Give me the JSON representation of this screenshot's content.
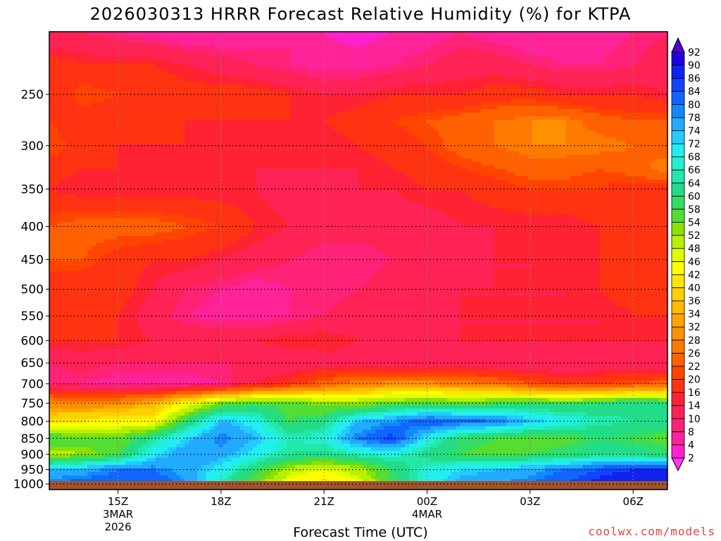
{
  "colors": {
    "ground": "#a0522d",
    "grid": "#000000",
    "credit": "#e8433a"
  },
  "chart_data": {
    "type": "heatmap",
    "title": "2026030313 HRRR Forecast Relative Humidity (%) for KTPA",
    "xlabel": "Forecast Time (UTC)",
    "ylabel": "",
    "x_ticks": [
      {
        "hour": 15,
        "lines": [
          "15Z",
          "3MAR",
          "2026"
        ]
      },
      {
        "hour": 18,
        "lines": [
          "18Z"
        ]
      },
      {
        "hour": 21,
        "lines": [
          "21Z"
        ]
      },
      {
        "hour": 24,
        "lines": [
          "00Z",
          "4MAR"
        ]
      },
      {
        "hour": 27,
        "lines": [
          "03Z"
        ]
      },
      {
        "hour": 30,
        "lines": [
          "06Z"
        ]
      }
    ],
    "xlim": [
      13,
      31
    ],
    "y_ticks": [
      250,
      300,
      350,
      400,
      450,
      500,
      550,
      600,
      650,
      700,
      750,
      800,
      850,
      900,
      950,
      1000
    ],
    "ylim": [
      1020,
      200
    ],
    "y_scale": "log-pressure",
    "grid": true,
    "colorbar_levels": [
      2,
      4,
      8,
      10,
      14,
      16,
      20,
      22,
      26,
      28,
      32,
      34,
      36,
      40,
      42,
      46,
      48,
      52,
      54,
      58,
      60,
      64,
      66,
      68,
      72,
      74,
      78,
      80,
      84,
      86,
      90,
      92
    ],
    "colorbar_colors": [
      "#ff33ff",
      "#ff22cc",
      "#ff2299",
      "#ff2277",
      "#ff2255",
      "#ff2233",
      "#ff3311",
      "#ff4400",
      "#ff6000",
      "#ff7a00",
      "#ff9000",
      "#ffa500",
      "#ffbb00",
      "#ffd000",
      "#ffe500",
      "#ffff00",
      "#e0ff00",
      "#b8f000",
      "#8ce000",
      "#55dd33",
      "#33dd66",
      "#22dd88",
      "#22e8aa",
      "#22f0cc",
      "#22eeee",
      "#22ccff",
      "#22aaff",
      "#1188ff",
      "#1166ff",
      "#1144ff",
      "#1122ee",
      "#2200dd",
      "#5500cc"
    ],
    "hours": [
      13,
      14,
      15,
      16,
      17,
      18,
      19,
      20,
      21,
      22,
      23,
      24,
      25,
      26,
      27,
      28,
      29,
      30,
      31
    ],
    "pressure_levels": [
      200,
      225,
      250,
      275,
      300,
      325,
      350,
      400,
      450,
      500,
      550,
      600,
      650,
      700,
      750,
      800,
      850,
      900,
      950,
      1000,
      1020
    ],
    "rh_grid": [
      [
        10,
        10,
        8,
        6,
        4,
        4,
        6,
        8,
        4,
        2,
        4,
        6,
        8,
        6,
        4,
        4,
        6,
        8,
        10
      ],
      [
        18,
        16,
        16,
        16,
        14,
        12,
        10,
        8,
        6,
        6,
        8,
        10,
        12,
        12,
        10,
        8,
        8,
        10,
        12
      ],
      [
        16,
        22,
        20,
        20,
        18,
        18,
        18,
        16,
        14,
        14,
        16,
        16,
        16,
        18,
        18,
        16,
        16,
        16,
        14
      ],
      [
        20,
        18,
        16,
        16,
        16,
        16,
        16,
        16,
        16,
        18,
        20,
        22,
        24,
        26,
        28,
        28,
        24,
        22,
        22
      ],
      [
        22,
        18,
        16,
        16,
        16,
        14,
        14,
        14,
        14,
        16,
        18,
        20,
        24,
        26,
        28,
        28,
        28,
        26,
        24
      ],
      [
        18,
        16,
        16,
        14,
        14,
        14,
        14,
        14,
        14,
        14,
        16,
        18,
        20,
        22,
        24,
        24,
        22,
        24,
        28
      ],
      [
        16,
        14,
        14,
        14,
        14,
        14,
        14,
        12,
        12,
        14,
        14,
        16,
        16,
        18,
        20,
        20,
        20,
        18,
        18
      ],
      [
        22,
        24,
        24,
        24,
        22,
        20,
        16,
        14,
        12,
        12,
        12,
        12,
        14,
        14,
        14,
        14,
        16,
        16,
        16
      ],
      [
        22,
        22,
        18,
        16,
        16,
        14,
        12,
        10,
        8,
        8,
        10,
        12,
        12,
        14,
        14,
        16,
        16,
        16,
        18
      ],
      [
        16,
        16,
        18,
        14,
        10,
        8,
        6,
        8,
        8,
        10,
        12,
        12,
        14,
        14,
        14,
        14,
        16,
        18,
        20
      ],
      [
        18,
        20,
        16,
        12,
        8,
        6,
        6,
        8,
        10,
        12,
        12,
        14,
        14,
        14,
        14,
        14,
        14,
        16,
        16
      ],
      [
        16,
        16,
        16,
        14,
        14,
        14,
        14,
        16,
        16,
        14,
        12,
        12,
        14,
        14,
        14,
        14,
        14,
        14,
        14
      ],
      [
        10,
        12,
        10,
        10,
        10,
        10,
        10,
        10,
        12,
        12,
        10,
        10,
        10,
        10,
        10,
        10,
        10,
        10,
        10
      ],
      [
        8,
        8,
        6,
        6,
        6,
        8,
        14,
        18,
        24,
        28,
        30,
        30,
        28,
        26,
        22,
        18,
        20,
        22,
        24
      ],
      [
        30,
        28,
        30,
        34,
        44,
        54,
        58,
        56,
        52,
        52,
        56,
        58,
        56,
        58,
        60,
        58,
        60,
        62,
        60
      ],
      [
        40,
        42,
        44,
        42,
        60,
        74,
        70,
        58,
        62,
        74,
        78,
        84,
        82,
        80,
        74,
        70,
        66,
        64,
        62
      ],
      [
        58,
        56,
        54,
        64,
        72,
        80,
        74,
        66,
        68,
        80,
        86,
        70,
        60,
        58,
        56,
        56,
        60,
        58,
        56
      ],
      [
        50,
        52,
        58,
        70,
        78,
        76,
        70,
        64,
        62,
        66,
        68,
        62,
        58,
        56,
        58,
        60,
        62,
        62,
        60
      ],
      [
        74,
        76,
        80,
        80,
        76,
        70,
        60,
        50,
        46,
        50,
        60,
        68,
        72,
        74,
        76,
        80,
        84,
        86,
        86
      ],
      [
        80,
        82,
        84,
        84,
        78,
        66,
        54,
        44,
        40,
        46,
        58,
        70,
        76,
        78,
        80,
        84,
        88,
        90,
        90
      ],
      [
        80,
        82,
        84,
        84,
        78,
        66,
        54,
        44,
        40,
        46,
        58,
        70,
        76,
        78,
        80,
        84,
        88,
        90,
        90
      ]
    ]
  },
  "credit": "coolwx.com/models"
}
